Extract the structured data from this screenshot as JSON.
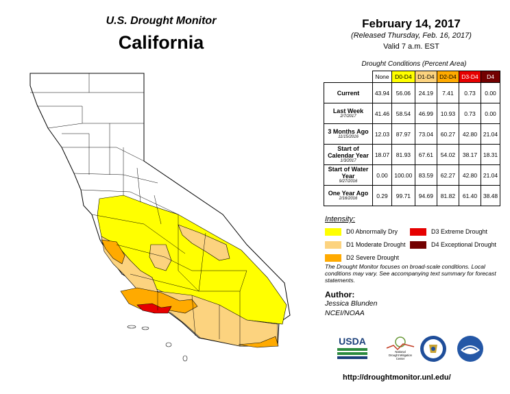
{
  "header": {
    "subtitle": "U.S. Drought Monitor",
    "title": "California",
    "date": "February 14, 2017",
    "released": "(Released Thursday, Feb. 16, 2017)",
    "valid": "Valid 7 a.m. EST"
  },
  "table": {
    "caption": "Drought Conditions (Percent Area)",
    "columns": [
      {
        "label": "None",
        "bg": "#ffffff",
        "fg": "#000000"
      },
      {
        "label": "D0-D4",
        "bg": "#ffff00",
        "fg": "#000000"
      },
      {
        "label": "D1-D4",
        "bg": "#fcd37f",
        "fg": "#000000"
      },
      {
        "label": "D2-D4",
        "bg": "#ffaa00",
        "fg": "#000000"
      },
      {
        "label": "D3-D4",
        "bg": "#e60000",
        "fg": "#ffffff"
      },
      {
        "label": "D4",
        "bg": "#730000",
        "fg": "#ffffff"
      }
    ],
    "rows": [
      {
        "label": "Current",
        "date": "",
        "values": [
          "43.94",
          "56.06",
          "24.19",
          "7.41",
          "0.73",
          "0.00"
        ]
      },
      {
        "label": "Last Week",
        "date": "2/7/2017",
        "values": [
          "41.46",
          "58.54",
          "46.99",
          "10.93",
          "0.73",
          "0.00"
        ]
      },
      {
        "label": "3 Months Ago",
        "date": "11/15/2016",
        "values": [
          "12.03",
          "87.97",
          "73.04",
          "60.27",
          "42.80",
          "21.04"
        ]
      },
      {
        "label": "Start of Calendar Year",
        "date": "1/3/2017",
        "values": [
          "18.07",
          "81.93",
          "67.61",
          "54.02",
          "38.17",
          "18.31"
        ]
      },
      {
        "label": "Start of Water Year",
        "date": "9/27/2016",
        "values": [
          "0.00",
          "100.00",
          "83.59",
          "62.27",
          "42.80",
          "21.04"
        ]
      },
      {
        "label": "One Year Ago",
        "date": "2/16/2016",
        "values": [
          "0.29",
          "99.71",
          "94.69",
          "81.82",
          "61.40",
          "38.48"
        ]
      }
    ]
  },
  "legend": {
    "title": "Intensity:",
    "items": [
      {
        "label": "D0 Abnormally Dry",
        "color": "#ffff00"
      },
      {
        "label": "D1 Moderate Drought",
        "color": "#fcd37f"
      },
      {
        "label": "D2 Severe Drought",
        "color": "#ffaa00"
      },
      {
        "label": "D3 Extreme Drought",
        "color": "#e60000"
      },
      {
        "label": "D4 Exceptional Drought",
        "color": "#730000"
      }
    ]
  },
  "note": "The Drought Monitor focuses on broad-scale conditions. Local conditions may vary. See accompanying text summary for forecast statements.",
  "author": {
    "heading": "Author:",
    "name": "Jessica Blunden",
    "org": "NCEI/NOAA"
  },
  "logos": {
    "usda": "USDA",
    "ndmc": "National Drought Mitigation Center",
    "noaa": "NOAA"
  },
  "url": "http://droughtmonitor.unl.edu/"
}
